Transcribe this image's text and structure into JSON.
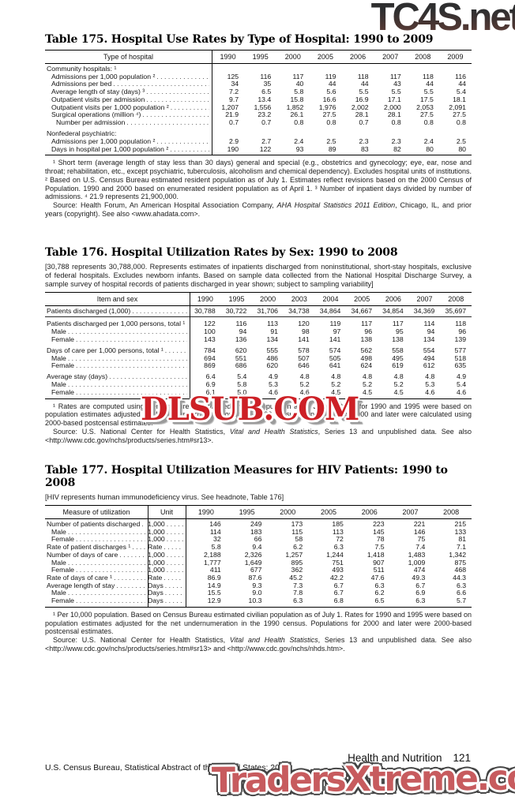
{
  "watermarks": {
    "top": "TC4S.net",
    "middle": "DLSUB.COM",
    "bottom": "TradersXtreme.com",
    "red": "#cd2026",
    "salmon": "#c75b5e"
  },
  "page": {
    "footer_section": "Health and Nutrition",
    "footer_page": "121",
    "footer_left": "U.S. Census Bureau, Statistical Abstract of the United States: 2012"
  },
  "tables": [
    {
      "title": "Table 175. Hospital Use Rates by Type of Hospital: 1990 to 2009",
      "col_header": "Type of hospital",
      "years": [
        "1990",
        "1995",
        "2000",
        "2005",
        "2006",
        "2007",
        "2008",
        "2009"
      ],
      "rows": [
        {
          "label": "Community hospitals: ¹"
        },
        {
          "label": "Admissions per 1,000 population ²",
          "indent": 1,
          "values": [
            "125",
            "116",
            "117",
            "119",
            "118",
            "117",
            "118",
            "116"
          ]
        },
        {
          "label": "Admissions per bed",
          "indent": 1,
          "values": [
            "34",
            "35",
            "40",
            "44",
            "44",
            "43",
            "44",
            "44"
          ]
        },
        {
          "label": "Average length of stay (days) ³",
          "indent": 1,
          "values": [
            "7.2",
            "6.5",
            "5.8",
            "5.6",
            "5.5",
            "5.5",
            "5.5",
            "5.4"
          ]
        },
        {
          "label": "Outpatient visits per admission",
          "indent": 1,
          "values": [
            "9.7",
            "13.4",
            "15.8",
            "16.6",
            "16.9",
            "17.1",
            "17.5",
            "18.1"
          ]
        },
        {
          "label": "Outpatient visits per 1,000 population ²",
          "indent": 1,
          "values": [
            "1,207",
            "1,556",
            "1,852",
            "1,976",
            "2,002",
            "2,000",
            "2,053",
            "2,091"
          ]
        },
        {
          "label": "Surgical operations (million ⁴)",
          "indent": 1,
          "values": [
            "21.9",
            "23.2",
            "26.1",
            "27.5",
            "28.1",
            "28.1",
            "27.5",
            "27.5"
          ]
        },
        {
          "label": "Number per admission",
          "indent": 2,
          "values": [
            "0.7",
            "0.7",
            "0.8",
            "0.8",
            "0.7",
            "0.8",
            "0.8",
            "0.8"
          ]
        },
        {
          "label": "Nonfederal psychiatric:",
          "space": true
        },
        {
          "label": "Admissions per 1,000 population ²",
          "indent": 1,
          "values": [
            "2.9",
            "2.7",
            "2.4",
            "2.5",
            "2.3",
            "2.3",
            "2.4",
            "2.5"
          ]
        },
        {
          "label": "Days in hospital per 1,000 population ²",
          "indent": 1,
          "values": [
            "190",
            "122",
            "93",
            "89",
            "83",
            "82",
            "80",
            "80"
          ]
        }
      ],
      "footnotes": [
        [
          {
            "t": "¹ Short term (average length of stay less than 30 days) general and special (e.g., obstetrics and gynecology; eye, ear, nose and throat; rehabilitation, etc., except psychiatric, tuberculosis, alcoholism and chemical dependency). Excludes hospital units of institutions. ² Based on U.S. Census Bureau estimated resident population as of July 1. Estimates reflect revisions based on the 2000 Census of Population. 1990 and 2000 based on enumerated resident population as of April 1. ³ Number of inpatient days divided by number of admissions. ⁴ 21.9 represents 21,900,000."
          }
        ],
        [
          {
            "t": "Source: Health Forum, An American Hospital Association Company, "
          },
          {
            "t": "AHA Hospital Statistics 2011 Edition",
            "i": true
          },
          {
            "t": ", Chicago, IL, and prior years (copyright). See also <www.ahadata.com>."
          }
        ]
      ]
    },
    {
      "title": "Table 176. Hospital Utilization Rates by Sex: 1990 to 2008",
      "headnote": "[30,788 represents 30,788,000. Represents estimates of inpatients discharged from noninstitutional, short-stay hospitals, exclusive of federal hospitals. Excludes newborn infants. Based on sample data collected from the National Hospital Discharge Survey, a sample survey of hospital records of patients discharged in year shown; subject to sampling variability]",
      "col_header": "Item and sex",
      "years": [
        "1990",
        "1995",
        "2000",
        "2003",
        "2004",
        "2005",
        "2006",
        "2007",
        "2008"
      ],
      "rows": [
        {
          "label": "Patients discharged (1,000)",
          "values": [
            "30,788",
            "30,722",
            "31,706",
            "34,738",
            "34,864",
            "34,667",
            "34,854",
            "34,369",
            "35,697"
          ],
          "rule": true
        },
        {
          "label": "Patients discharged per 1,000 persons, total ¹",
          "space": true,
          "values": [
            "122",
            "116",
            "113",
            "120",
            "119",
            "117",
            "117",
            "114",
            "118"
          ]
        },
        {
          "label": "Male",
          "indent": 1,
          "values": [
            "100",
            "94",
            "91",
            "98",
            "97",
            "96",
            "95",
            "94",
            "96"
          ]
        },
        {
          "label": "Female",
          "indent": 1,
          "values": [
            "143",
            "136",
            "134",
            "141",
            "141",
            "138",
            "138",
            "134",
            "139"
          ]
        },
        {
          "label": "Days of care per 1,000 persons, total ¹",
          "space": true,
          "values": [
            "784",
            "620",
            "555",
            "578",
            "574",
            "562",
            "558",
            "554",
            "577"
          ]
        },
        {
          "label": "Male",
          "indent": 1,
          "values": [
            "694",
            "551",
            "486",
            "507",
            "505",
            "498",
            "495",
            "494",
            "518"
          ]
        },
        {
          "label": "Female",
          "indent": 1,
          "values": [
            "869",
            "686",
            "620",
            "646",
            "641",
            "624",
            "619",
            "612",
            "635"
          ]
        },
        {
          "label": "Average stay (days)",
          "space": true,
          "values": [
            "6.4",
            "5.4",
            "4.9",
            "4.8",
            "4.8",
            "4.8",
            "4.8",
            "4.8",
            "4.9"
          ]
        },
        {
          "label": "Male",
          "indent": 1,
          "values": [
            "6.9",
            "5.8",
            "5.3",
            "5.2",
            "5.2",
            "5.2",
            "5.2",
            "5.3",
            "5.4"
          ]
        },
        {
          "label": "Female",
          "indent": 1,
          "values": [
            "6.1",
            "5.0",
            "4.6",
            "4.6",
            "4.5",
            "4.5",
            "4.5",
            "4.6",
            "4.6"
          ]
        }
      ],
      "footnotes": [
        [
          {
            "t": "¹ Rates are computed using Census Bureau estimated civilian population as of July 1. Rates for 1990 and 1995 were based on population estimates adjusted for the net undernumeration in the 1990 census. Populations for 2000 and later were calculated using 2000-based postcensal estimates."
          }
        ],
        [
          {
            "t": "Source: U.S. National Center for Health Statistics, "
          },
          {
            "t": "Vital and Health Statistics",
            "i": true
          },
          {
            "t": ", Series 13 and unpublished data. See also <http://www.cdc.gov/nchs/products/series.htm#sr13>."
          }
        ]
      ]
    },
    {
      "title": "Table 177. Hospital Utilization Measures for HIV Patients: 1990 to 2008",
      "headnote": "[HIV represents human immunodeficiency virus. See headnote, Table 176]",
      "col_header": "Measure of utilization",
      "unit_header": "Unit",
      "years": [
        "1990",
        "1995",
        "2000",
        "2005",
        "2006",
        "2007",
        "2008"
      ],
      "rows": [
        {
          "label": "Number of patients discharged",
          "unit": "1,000",
          "values": [
            "146",
            "249",
            "173",
            "185",
            "223",
            "221",
            "215"
          ]
        },
        {
          "label": "Male",
          "indent": 1,
          "unit": "1,000",
          "values": [
            "114",
            "183",
            "115",
            "113",
            "145",
            "146",
            "133"
          ]
        },
        {
          "label": "Female",
          "indent": 1,
          "unit": "1,000",
          "values": [
            "32",
            "66",
            "58",
            "72",
            "78",
            "75",
            "81"
          ]
        },
        {
          "label": "Rate of patient discharges ¹",
          "unit": "Rate",
          "values": [
            "5.8",
            "9.4",
            "6.2",
            "6.3",
            "7.5",
            "7.4",
            "7.1"
          ]
        },
        {
          "label": "Number of days of care",
          "unit": "1,000",
          "values": [
            "2,188",
            "2,326",
            "1,257",
            "1,244",
            "1,418",
            "1,483",
            "1,342"
          ]
        },
        {
          "label": "Male",
          "indent": 1,
          "unit": "1,000",
          "values": [
            "1,777",
            "1,649",
            "895",
            "751",
            "907",
            "1,009",
            "875"
          ]
        },
        {
          "label": "Female",
          "indent": 1,
          "unit": "1,000",
          "values": [
            "411",
            "677",
            "362",
            "493",
            "511",
            "474",
            "468"
          ]
        },
        {
          "label": "Rate of days of care ¹",
          "unit": "Rate",
          "values": [
            "86.9",
            "87.6",
            "45.2",
            "42.2",
            "47.6",
            "49.3",
            "44.3"
          ]
        },
        {
          "label": "Average length of stay",
          "unit": "Days",
          "values": [
            "14.9",
            "9.3",
            "7.3",
            "6.7",
            "6.3",
            "6.7",
            "6.3"
          ]
        },
        {
          "label": "Male",
          "indent": 1,
          "unit": "Days",
          "values": [
            "15.5",
            "9.0",
            "7.8",
            "6.7",
            "6.2",
            "6.9",
            "6.6"
          ]
        },
        {
          "label": "Female",
          "indent": 1,
          "unit": "Days",
          "values": [
            "12.9",
            "10.3",
            "6.3",
            "6.8",
            "6.5",
            "6.3",
            "5.7"
          ]
        }
      ],
      "footnotes": [
        [
          {
            "t": "¹ Per 10,000 population. Based on Census Bureau estimated civilian population as of July 1. Rates for 1990 and 1995 were based on population estimates adjusted for the net undernumeration in the 1990 census. Populations for 2000 and later were 2000-based postcensal estimates."
          }
        ],
        [
          {
            "t": "Source: U.S. National Center for Health Statistics, "
          },
          {
            "t": "Vital and Health Statistics",
            "i": true
          },
          {
            "t": ", Series 13 and unpublished data. See also <http://www.cdc.gov/nchs/products/series.htm#sr13> and <http://www.cdc.gov/nchs/nhds.htm>."
          }
        ]
      ]
    }
  ]
}
